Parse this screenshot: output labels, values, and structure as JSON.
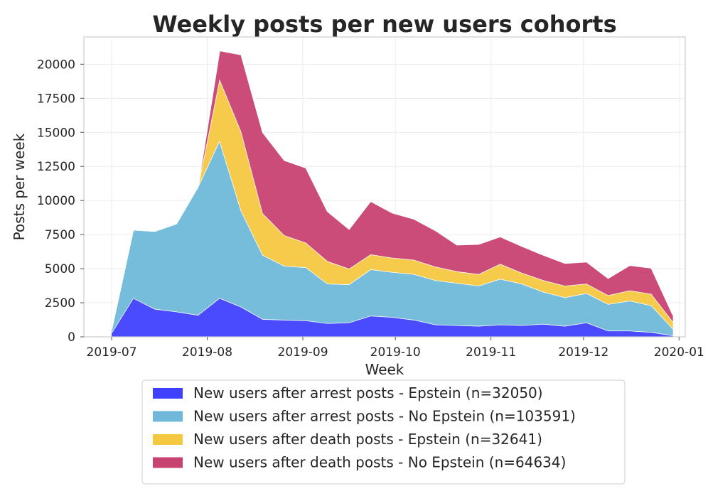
{
  "chart_data": {
    "type": "area",
    "stacked": true,
    "title": "Weekly posts per new users cohorts",
    "xlabel": "Week",
    "ylabel": "Posts per week",
    "xlim": [
      "2019-06-22",
      "2020-01-03"
    ],
    "ylim": [
      0,
      22000
    ],
    "yticks": [
      0,
      2500,
      5000,
      7500,
      10000,
      12500,
      15000,
      17500,
      20000
    ],
    "xticks": [
      "2019-07-01",
      "2019-08-01",
      "2019-09-01",
      "2019-10-01",
      "2019-11-01",
      "2019-12-01",
      "2020-01-01"
    ],
    "xtick_labels": [
      "2019-07",
      "2019-08",
      "2019-09",
      "2019-10",
      "2019-11",
      "2019-12",
      "2020-01"
    ],
    "grid": true,
    "legend": "below",
    "x": [
      "2019-07-01",
      "2019-07-08",
      "2019-07-15",
      "2019-07-22",
      "2019-07-29",
      "2019-08-05",
      "2019-08-12",
      "2019-08-19",
      "2019-08-26",
      "2019-09-02",
      "2019-09-09",
      "2019-09-16",
      "2019-09-23",
      "2019-09-30",
      "2019-10-07",
      "2019-10-14",
      "2019-10-21",
      "2019-10-28",
      "2019-11-04",
      "2019-11-11",
      "2019-11-18",
      "2019-11-25",
      "2019-12-02",
      "2019-12-09",
      "2019-12-16",
      "2019-12-23",
      "2019-12-30"
    ],
    "series": [
      {
        "name": "New users after arrest posts - Epstein (n=32050)",
        "color": "#4040ff",
        "values": [
          300,
          2850,
          2050,
          1850,
          1600,
          2850,
          2200,
          1300,
          1250,
          1200,
          1000,
          1050,
          1550,
          1450,
          1250,
          900,
          850,
          800,
          900,
          850,
          950,
          800,
          1050,
          450,
          450,
          350,
          100
        ]
      },
      {
        "name": "New users after arrest posts - No Epstein (n=103591)",
        "color": "#6fb8d9",
        "values": [
          250,
          5000,
          5700,
          6450,
          9400,
          11550,
          7050,
          4700,
          3950,
          3900,
          2900,
          2800,
          3400,
          3300,
          3350,
          3250,
          3100,
          2950,
          3350,
          3050,
          2350,
          2100,
          2150,
          1950,
          2200,
          1950,
          500
        ]
      },
      {
        "name": "New users after death posts - Epstein (n=32641)",
        "color": "#f5c842",
        "values": [
          0,
          0,
          0,
          0,
          0,
          4500,
          5800,
          3050,
          2250,
          1800,
          1650,
          1150,
          1100,
          1050,
          1050,
          1000,
          850,
          850,
          1100,
          800,
          850,
          850,
          700,
          650,
          750,
          850,
          500
        ]
      },
      {
        "name": "New users after death posts - No Epstein (n=64634)",
        "color": "#c84271",
        "values": [
          0,
          0,
          0,
          0,
          0,
          2100,
          5650,
          5950,
          5500,
          5500,
          3650,
          2900,
          3900,
          3300,
          3000,
          2650,
          1950,
          2200,
          2000,
          1950,
          1850,
          1650,
          1600,
          1250,
          1850,
          1900,
          500
        ]
      }
    ]
  }
}
